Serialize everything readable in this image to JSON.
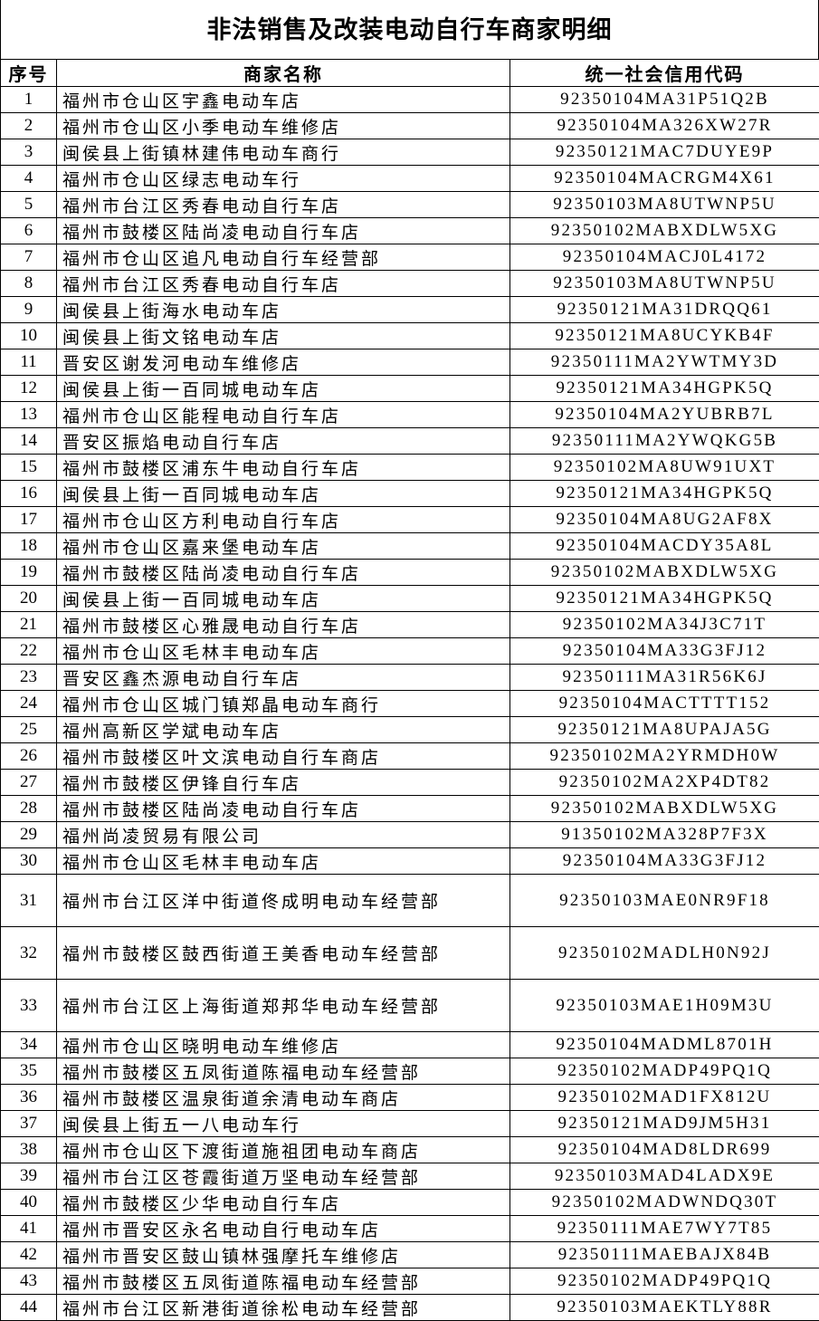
{
  "title": "非法销售及改装电动自行车商家明细",
  "headers": {
    "no": "序号",
    "name": "商家名称",
    "code": "统一社会信用代码"
  },
  "rows": [
    {
      "no": "1",
      "name": "福州市仓山区宇鑫电动车店",
      "code": "92350104MA31P51Q2B"
    },
    {
      "no": "2",
      "name": "福州市仓山区小季电动车维修店",
      "code": "92350104MA326XW27R"
    },
    {
      "no": "3",
      "name": "闽侯县上街镇林建伟电动车商行",
      "code": "92350121MAC7DUYE9P"
    },
    {
      "no": "4",
      "name": "福州市仓山区绿志电动车行",
      "code": "92350104MACRGM4X61"
    },
    {
      "no": "5",
      "name": "福州市台江区秀春电动自行车店",
      "code": "92350103MA8UTWNP5U"
    },
    {
      "no": "6",
      "name": "福州市鼓楼区陆尚凌电动自行车店",
      "code": "92350102MABXDLW5XG"
    },
    {
      "no": "7",
      "name": "福州市仓山区追凡电动自行车经营部",
      "code": "92350104MACJ0L4172"
    },
    {
      "no": "8",
      "name": "福州市台江区秀春电动自行车店",
      "code": "92350103MA8UTWNP5U"
    },
    {
      "no": "9",
      "name": "闽侯县上街海水电动车店",
      "code": "92350121MA31DRQQ61"
    },
    {
      "no": "10",
      "name": "闽侯县上街文铭电动车店",
      "code": "92350121MA8UCYKB4F"
    },
    {
      "no": "11",
      "name": "晋安区谢发河电动车维修店",
      "code": "92350111MA2YWTMY3D"
    },
    {
      "no": "12",
      "name": "闽侯县上街一百同城电动车店",
      "code": "92350121MA34HGPK5Q"
    },
    {
      "no": "13",
      "name": "福州市仓山区能程电动自行车店",
      "code": "92350104MA2YUBRB7L"
    },
    {
      "no": "14",
      "name": "晋安区振焰电动自行车店",
      "code": "92350111MA2YWQKG5B"
    },
    {
      "no": "15",
      "name": "福州市鼓楼区浦东牛电动自行车店",
      "code": "92350102MA8UW91UXT"
    },
    {
      "no": "16",
      "name": "闽侯县上街一百同城电动车店",
      "code": "92350121MA34HGPK5Q"
    },
    {
      "no": "17",
      "name": "福州市仓山区方利电动自行车店",
      "code": "92350104MA8UG2AF8X"
    },
    {
      "no": "18",
      "name": "福州市仓山区嘉来堡电动车店",
      "code": "92350104MACDY35A8L"
    },
    {
      "no": "19",
      "name": "福州市鼓楼区陆尚凌电动自行车店",
      "code": "92350102MABXDLW5XG"
    },
    {
      "no": "20",
      "name": "闽侯县上街一百同城电动车店",
      "code": "92350121MA34HGPK5Q"
    },
    {
      "no": "21",
      "name": "福州市鼓楼区心雅晟电动自行车店",
      "code": "92350102MA34J3C71T"
    },
    {
      "no": "22",
      "name": "福州市仓山区毛林丰电动车店",
      "code": "92350104MA33G3FJ12"
    },
    {
      "no": "23",
      "name": "晋安区鑫杰源电动自行车店",
      "code": "92350111MA31R56K6J"
    },
    {
      "no": "24",
      "name": "福州市仓山区城门镇郑晶电动车商行",
      "code": "92350104MACTTTT152"
    },
    {
      "no": "25",
      "name": "福州高新区学斌电动车店",
      "code": "92350121MA8UPAJA5G"
    },
    {
      "no": "26",
      "name": "福州市鼓楼区叶文滨电动自行车商店",
      "code": "92350102MA2YRMDH0W"
    },
    {
      "no": "27",
      "name": "福州市鼓楼区伊锋自行车店",
      "code": "92350102MA2XP4DT82"
    },
    {
      "no": "28",
      "name": "福州市鼓楼区陆尚凌电动自行车店",
      "code": "92350102MABXDLW5XG"
    },
    {
      "no": "29",
      "name": "福州尚凌贸易有限公司",
      "code": "91350102MA328P7F3X"
    },
    {
      "no": "30",
      "name": "福州市仓山区毛林丰电动车店",
      "code": "92350104MA33G3FJ12"
    },
    {
      "no": "31",
      "name": "福州市台江区洋中街道佟成明电动车经营部",
      "code": "92350103MAE0NR9F18"
    },
    {
      "no": "32",
      "name": "福州市鼓楼区鼓西街道王美香电动车经营部",
      "code": "92350102MADLH0N92J"
    },
    {
      "no": "33",
      "name": "福州市台江区上海街道郑邦华电动车经营部",
      "code": "92350103MAE1H09M3U"
    },
    {
      "no": "34",
      "name": "福州市仓山区晓明电动车维修店",
      "code": "92350104MADML8701H"
    },
    {
      "no": "35",
      "name": "福州市鼓楼区五凤街道陈福电动车经营部",
      "code": "92350102MADP49PQ1Q"
    },
    {
      "no": "36",
      "name": "福州市鼓楼区温泉街道余清电动车商店",
      "code": "92350102MAD1FX812U"
    },
    {
      "no": "37",
      "name": "闽侯县上街五一八电动车行",
      "code": "92350121MAD9JM5H31"
    },
    {
      "no": "38",
      "name": "福州市仓山区下渡街道施祖团电动车商店",
      "code": "92350104MAD8LDR699"
    },
    {
      "no": "39",
      "name": "福州市台江区苍霞街道万坚电动车经营部",
      "code": "92350103MAD4LADX9E"
    },
    {
      "no": "40",
      "name": "福州市鼓楼区少华电动自行车店",
      "code": "92350102MADWNDQ30T"
    },
    {
      "no": "41",
      "name": "福州市晋安区永名电动自行电动车店",
      "code": "92350111MAE7WY7T85"
    },
    {
      "no": "42",
      "name": "福州市晋安区鼓山镇林强摩托车维修店",
      "code": "92350111MAEBAJX84B"
    },
    {
      "no": "43",
      "name": "福州市鼓楼区五凤街道陈福电动车经营部",
      "code": "92350102MADP49PQ1Q"
    },
    {
      "no": "44",
      "name": "福州市台江区新港街道徐松电动车经营部",
      "code": "92350103MAEKTLY88R"
    }
  ]
}
